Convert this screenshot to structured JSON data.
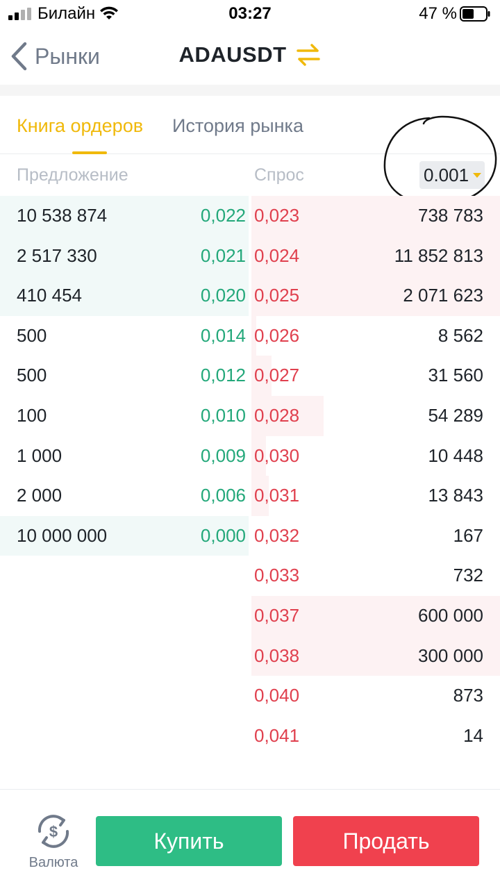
{
  "status_bar": {
    "carrier": "Билайн",
    "time": "03:27",
    "battery": "47 %"
  },
  "nav": {
    "back_label": "Рынки",
    "title": "ADAUSDT",
    "swap_icon": "swap-arrows-icon"
  },
  "tabs": [
    {
      "label": "Книга ордеров",
      "active": true
    },
    {
      "label": "История рынка",
      "active": false
    }
  ],
  "order_book": {
    "bid_header": "Предложение",
    "ask_header": "Спрос",
    "precision": "0.001",
    "bids": [
      {
        "qty": "10 538 874",
        "price": "0,022",
        "depth": 1.0
      },
      {
        "qty": "2 517 330",
        "price": "0,021",
        "depth": 1.0
      },
      {
        "qty": "410 454",
        "price": "0,020",
        "depth": 1.0
      },
      {
        "qty": "500",
        "price": "0,014",
        "depth": 0.0
      },
      {
        "qty": "500",
        "price": "0,012",
        "depth": 0.0
      },
      {
        "qty": "100",
        "price": "0,010",
        "depth": 0.0
      },
      {
        "qty": "1 000",
        "price": "0,009",
        "depth": 0.0
      },
      {
        "qty": "2 000",
        "price": "0,006",
        "depth": 0.0
      },
      {
        "qty": "10 000 000",
        "price": "0,000",
        "depth": 1.0
      }
    ],
    "asks": [
      {
        "price": "0,023",
        "qty": "738 783",
        "depth": 1.0
      },
      {
        "price": "0,024",
        "qty": "11 852 813",
        "depth": 1.0
      },
      {
        "price": "0,025",
        "qty": "2 071 623",
        "depth": 1.0
      },
      {
        "price": "0,026",
        "qty": "8 562",
        "depth": 0.02
      },
      {
        "price": "0,027",
        "qty": "31 560",
        "depth": 0.08
      },
      {
        "price": "0,028",
        "qty": "54 289",
        "depth": 0.29
      },
      {
        "price": "0,030",
        "qty": "10 448",
        "depth": 0.06
      },
      {
        "price": "0,031",
        "qty": "13 843",
        "depth": 0.07
      },
      {
        "price": "0,032",
        "qty": "167",
        "depth": 0.0
      },
      {
        "price": "0,033",
        "qty": "732",
        "depth": 0.0
      },
      {
        "price": "0,037",
        "qty": "600 000",
        "depth": 1.0
      },
      {
        "price": "0,038",
        "qty": "300 000",
        "depth": 1.0
      },
      {
        "price": "0,040",
        "qty": "873",
        "depth": 0.0
      },
      {
        "price": "0,041",
        "qty": "14",
        "depth": 0.0
      }
    ]
  },
  "bottom": {
    "currency_label": "Валюта",
    "buy_label": "Купить",
    "sell_label": "Продать"
  },
  "colors": {
    "accent": "#f0b90b",
    "buy": "#2ebd85",
    "sell": "#f0414e",
    "bid_text": "#23a87a",
    "ask_text": "#e0404e"
  }
}
